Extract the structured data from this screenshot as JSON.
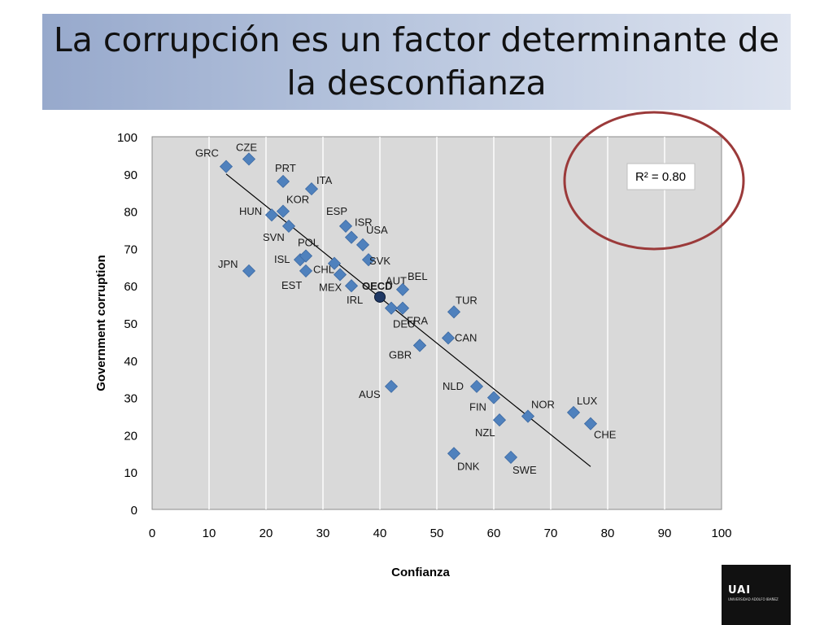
{
  "slide": {
    "title": "La corrupción es un factor determinante de la desconfianza",
    "logo": {
      "mark": "UAI",
      "subtext": "UNIVERSIDAD ADOLFO IBAÑEZ"
    }
  },
  "chart_data": {
    "type": "scatter",
    "xlabel": "Confianza",
    "ylabel": "Government corruption",
    "xlim": [
      0,
      100
    ],
    "ylim": [
      0,
      100
    ],
    "xticks": [
      0,
      10,
      20,
      30,
      40,
      50,
      60,
      70,
      80,
      90,
      100
    ],
    "yticks": [
      0,
      10,
      20,
      30,
      40,
      50,
      60,
      70,
      80,
      90,
      100
    ],
    "grid": "vertical",
    "annotation": "R² = 0.80",
    "annotation_highlight_color": "#9b3a3a",
    "plot_background": "#d9d9d9",
    "marker_color": "#4f81bd",
    "oecd_marker_color": "#1f3864",
    "trendline": {
      "x": [
        13,
        77
      ],
      "y": [
        90,
        11.5
      ]
    },
    "points": [
      {
        "label": "GRC",
        "x": 13,
        "y": 92
      },
      {
        "label": "CZE",
        "x": 17,
        "y": 94
      },
      {
        "label": "JPN",
        "x": 17,
        "y": 64
      },
      {
        "label": "HUN",
        "x": 21,
        "y": 79
      },
      {
        "label": "KOR",
        "x": 23,
        "y": 80
      },
      {
        "label": "PRT",
        "x": 23,
        "y": 88
      },
      {
        "label": "SVN",
        "x": 24,
        "y": 76
      },
      {
        "label": "ISL",
        "x": 26,
        "y": 67
      },
      {
        "label": "POL",
        "x": 27,
        "y": 68
      },
      {
        "label": "EST",
        "x": 27,
        "y": 64
      },
      {
        "label": "ITA",
        "x": 28,
        "y": 86
      },
      {
        "label": "CHL",
        "x": 32,
        "y": 66
      },
      {
        "label": "MEX",
        "x": 33,
        "y": 63
      },
      {
        "label": "ESP",
        "x": 34,
        "y": 76
      },
      {
        "label": "ISR",
        "x": 35,
        "y": 73
      },
      {
        "label": "IRL",
        "x": 35,
        "y": 60
      },
      {
        "label": "USA",
        "x": 37,
        "y": 71
      },
      {
        "label": "SVK",
        "x": 38,
        "y": 67
      },
      {
        "label": "AUT",
        "x": 42,
        "y": 54
      },
      {
        "label": "OECD",
        "x": 40,
        "y": 57,
        "oecd": true
      },
      {
        "label": "DEU",
        "x": 44,
        "y": 54
      },
      {
        "label": "BEL",
        "x": 44,
        "y": 59
      },
      {
        "label": "FRA",
        "x": 47,
        "y": 44
      },
      {
        "label": "AUS",
        "x": 42,
        "y": 33
      },
      {
        "label": "GBR",
        "x": 47,
        "y": 44
      },
      {
        "label": "CAN",
        "x": 52,
        "y": 46
      },
      {
        "label": "TUR",
        "x": 53,
        "y": 53
      },
      {
        "label": "DNK",
        "x": 53,
        "y": 15
      },
      {
        "label": "NLD",
        "x": 57,
        "y": 33
      },
      {
        "label": "FIN",
        "x": 60,
        "y": 30
      },
      {
        "label": "NZL",
        "x": 61,
        "y": 24
      },
      {
        "label": "SWE",
        "x": 63,
        "y": 14
      },
      {
        "label": "NOR",
        "x": 66,
        "y": 25
      },
      {
        "label": "LUX",
        "x": 74,
        "y": 26
      },
      {
        "label": "CHE",
        "x": 77,
        "y": 23
      }
    ]
  }
}
